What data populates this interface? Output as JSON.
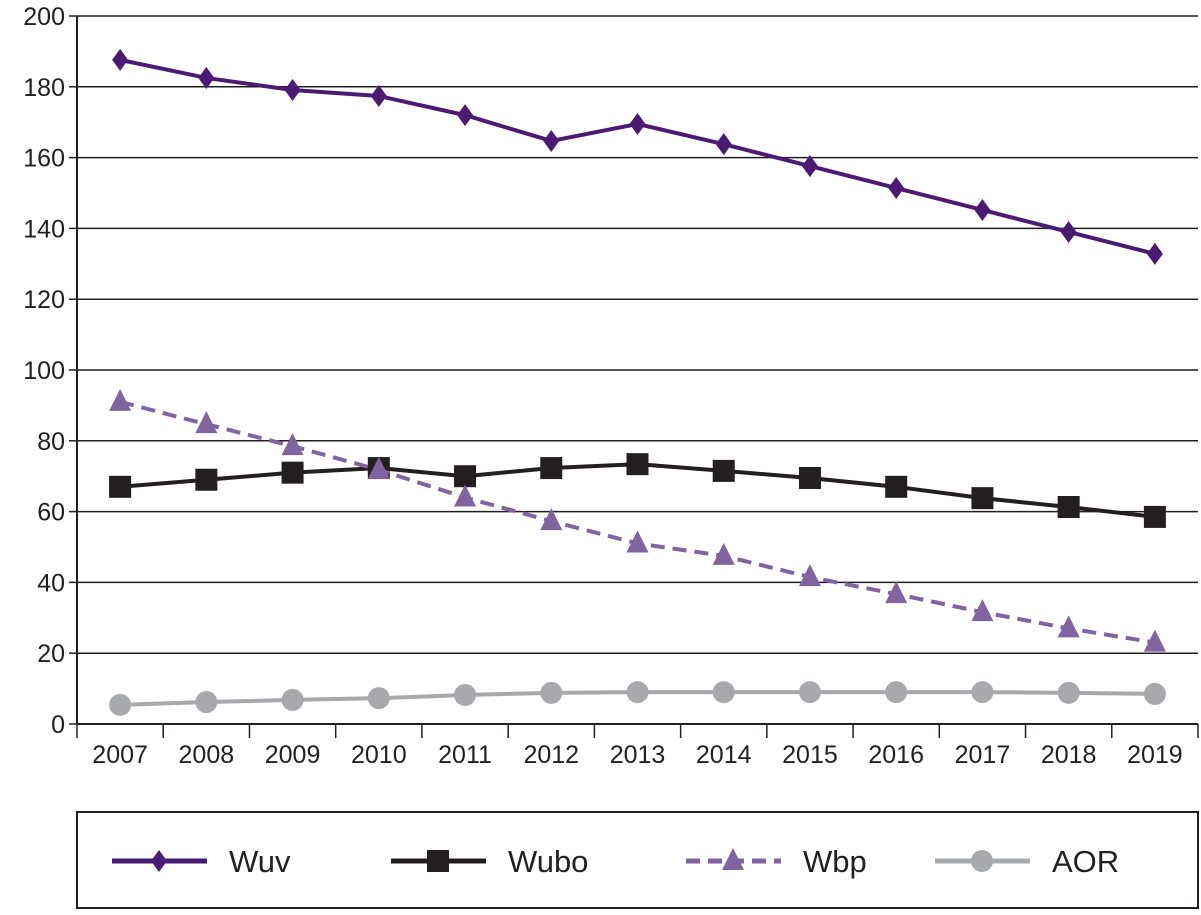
{
  "chart_data": {
    "type": "line",
    "title": "",
    "xlabel": "",
    "ylabel": "",
    "categories": [
      "2007",
      "2008",
      "2009",
      "2010",
      "2011",
      "2012",
      "2013",
      "2014",
      "2015",
      "2016",
      "2017",
      "2018",
      "2019"
    ],
    "ylim": [
      0,
      200
    ],
    "yticks": [
      0,
      20,
      40,
      60,
      80,
      100,
      120,
      140,
      160,
      180,
      200
    ],
    "grid": true,
    "legend_placement": "bottom",
    "series": [
      {
        "name": "Wuv",
        "color": "#4b1a72",
        "marker": "diamond",
        "dash": false,
        "values": [
          187.6,
          182.5,
          179.1,
          177.4,
          172.0,
          164.7,
          169.5,
          163.8,
          157.6,
          151.4,
          145.2,
          139.0,
          132.8
        ]
      },
      {
        "name": "Wubo",
        "color": "#231f20",
        "marker": "square",
        "dash": false,
        "values": [
          67.0,
          69.0,
          71.0,
          72.3,
          70.0,
          72.3,
          73.4,
          71.5,
          69.5,
          67.0,
          63.8,
          61.3,
          58.5
        ]
      },
      {
        "name": "Wbp",
        "color": "#7f64a0",
        "marker": "triangle",
        "dash": true,
        "values": [
          91.0,
          84.7,
          78.5,
          71.8,
          64.0,
          57.3,
          51.0,
          47.5,
          41.5,
          36.7,
          31.6,
          27.0,
          23.0
        ]
      },
      {
        "name": "AOR",
        "color": "#a7a9ac",
        "marker": "circle",
        "dash": false,
        "values": [
          5.4,
          6.2,
          6.8,
          7.3,
          8.2,
          8.8,
          9.0,
          9.0,
          9.0,
          9.0,
          9.0,
          8.8,
          8.5
        ]
      }
    ]
  }
}
